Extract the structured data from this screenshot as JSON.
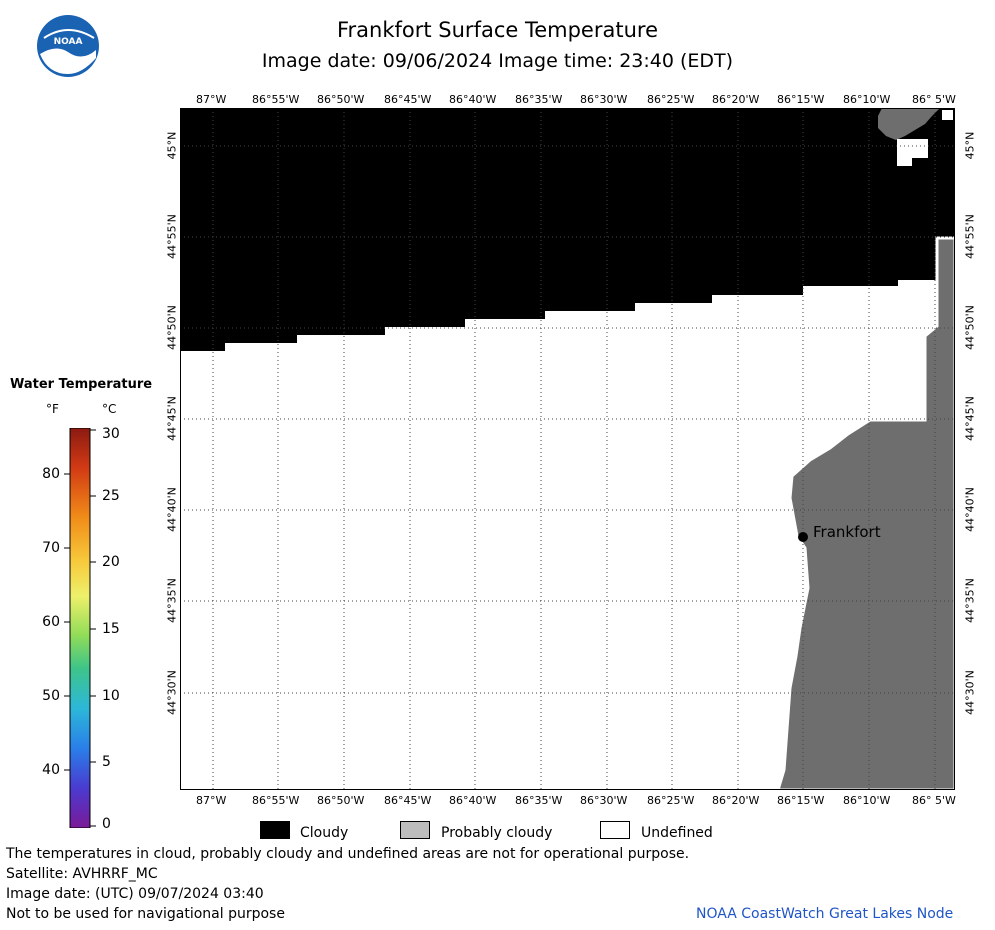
{
  "title": "Frankfort Surface Temperature",
  "subtitle": "Image date: 09/06/2024      Image time: 23:40 (EDT)",
  "logo": {
    "text": "NOAA",
    "icon": "noaa-logo-icon",
    "color": "#1a63b3"
  },
  "map": {
    "lon_ticks": [
      "87°W",
      "86°55'W",
      "86°50'W",
      "86°45'W",
      "86°40'W",
      "86°35'W",
      "86°30'W",
      "86°25'W",
      "86°20'W",
      "86°15'W",
      "86°10'W",
      "86° 5'W"
    ],
    "lat_ticks": [
      "45°N",
      "44°55'N",
      "44°50'N",
      "44°45'N",
      "44°40'N",
      "44°35'N",
      "44°30'N"
    ],
    "place": "Frankfort",
    "colors": {
      "cloudy": "#000000",
      "land": "#6e6e6e",
      "undefined": "#ffffff",
      "grid": "#444444"
    }
  },
  "colorbar": {
    "title": "Water Temperature",
    "unit_f": "°F",
    "unit_c": "°C",
    "f_labels": [
      "80",
      "70",
      "60",
      "50",
      "40"
    ],
    "c_labels": [
      "30",
      "25",
      "20",
      "15",
      "10",
      "5",
      "0"
    ]
  },
  "legend": [
    {
      "label": "Cloudy",
      "color": "#000000"
    },
    {
      "label": "Probably cloudy",
      "color": "#bdbdbd"
    },
    {
      "label": "Undefined",
      "color": "#ffffff"
    }
  ],
  "footer": {
    "line1": "The temperatures in cloud, probably cloudy and undefined areas are not for operational purpose.",
    "line2": "Satellite: AVHRRF_MC",
    "line3": "Image date: (UTC) 09/07/2024  03:40",
    "line4": "Not to be used for navigational purpose",
    "credit": "NOAA CoastWatch Great Lakes Node"
  }
}
